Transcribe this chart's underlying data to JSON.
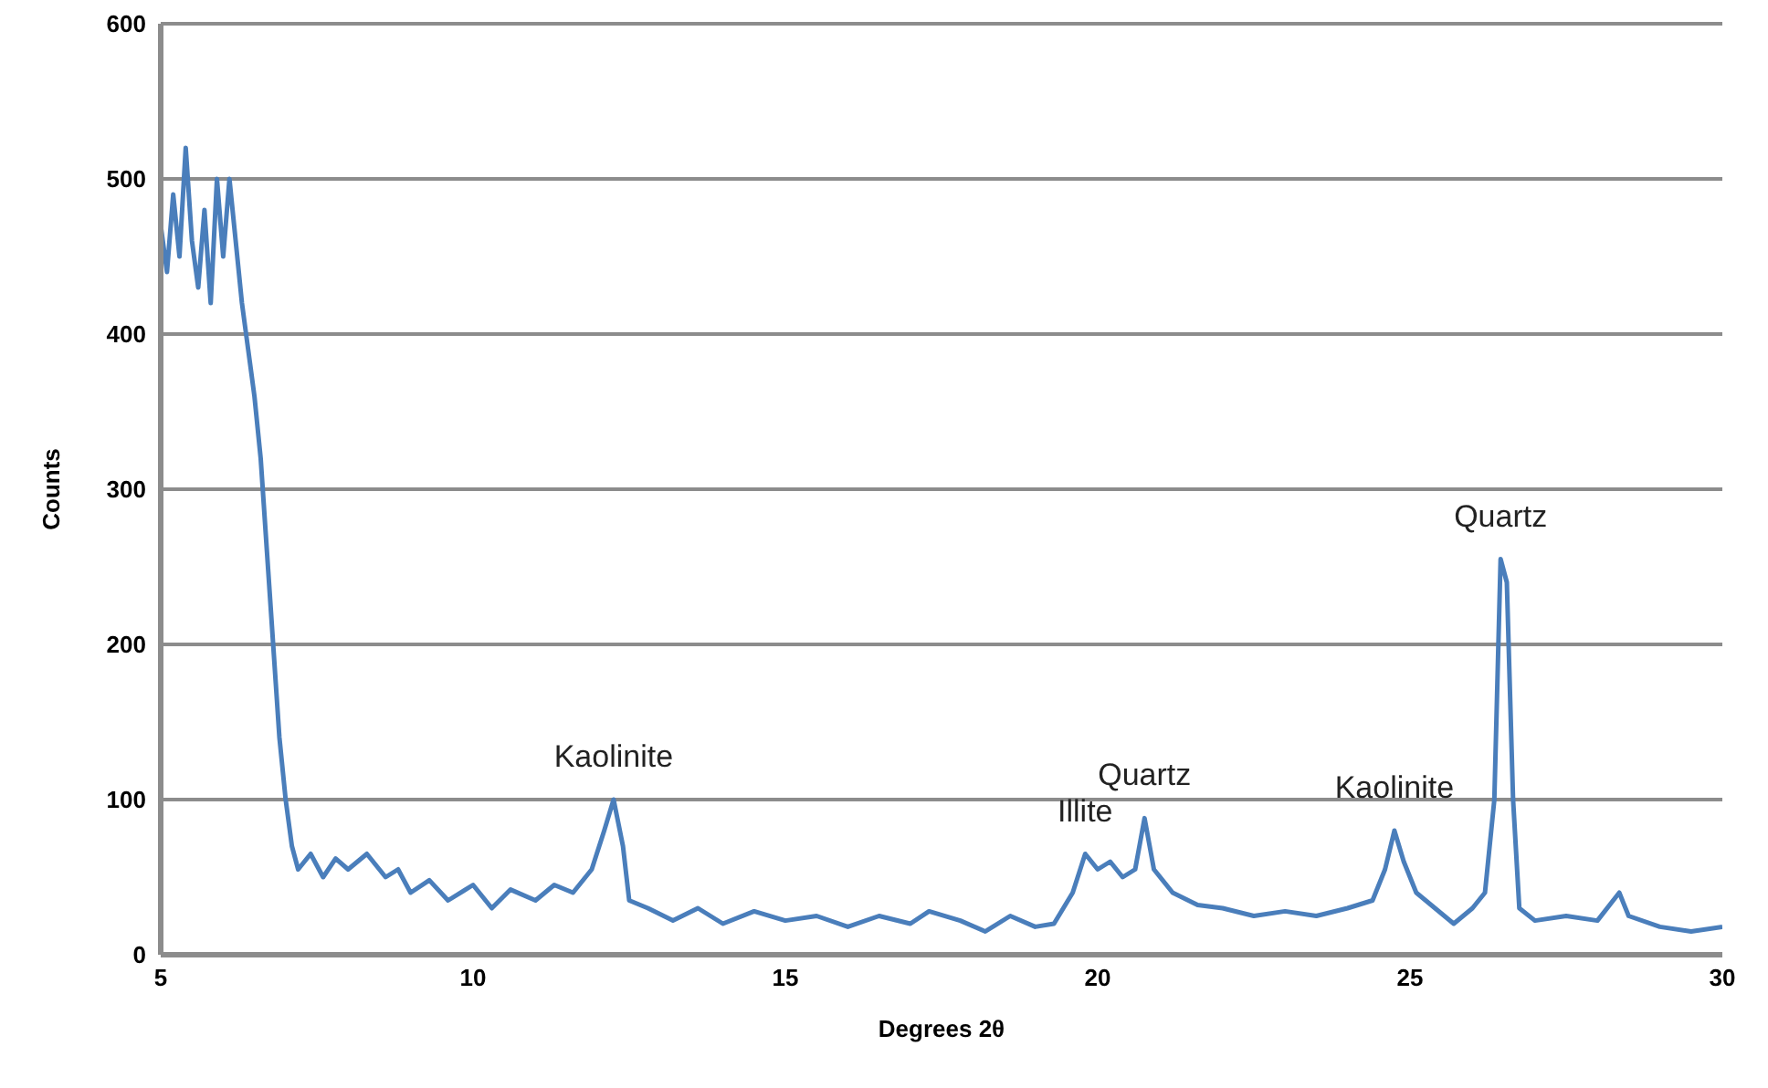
{
  "chart_data": {
    "type": "line",
    "xlabel": "Degrees 2θ",
    "ylabel": "Counts",
    "color": "#4a7ebb",
    "x": [
      5.0,
      5.1,
      5.2,
      5.3,
      5.4,
      5.5,
      5.6,
      5.7,
      5.8,
      5.9,
      6.0,
      6.1,
      6.2,
      6.3,
      6.4,
      6.5,
      6.6,
      6.7,
      6.8,
      6.9,
      7.0,
      7.1,
      7.2,
      7.4,
      7.6,
      7.8,
      8.0,
      8.3,
      8.6,
      8.8,
      9.0,
      9.3,
      9.6,
      10.0,
      10.3,
      10.6,
      11.0,
      11.3,
      11.6,
      11.9,
      12.1,
      12.25,
      12.4,
      12.5,
      12.8,
      13.2,
      13.6,
      14.0,
      14.5,
      15.0,
      15.5,
      16.0,
      16.5,
      17.0,
      17.3,
      17.8,
      18.2,
      18.6,
      19.0,
      19.3,
      19.6,
      19.8,
      20.0,
      20.2,
      20.4,
      20.6,
      20.75,
      20.9,
      21.2,
      21.6,
      22.0,
      22.5,
      23.0,
      23.5,
      24.0,
      24.4,
      24.6,
      24.75,
      24.9,
      25.1,
      25.4,
      25.7,
      26.0,
      26.2,
      26.35,
      26.45,
      26.55,
      26.65,
      26.75,
      27.0,
      27.5,
      28.0,
      28.35,
      28.5,
      29.0,
      29.5,
      30.0
    ],
    "values": [
      470,
      440,
      490,
      450,
      520,
      460,
      430,
      480,
      420,
      500,
      450,
      500,
      460,
      420,
      390,
      360,
      320,
      260,
      200,
      140,
      100,
      70,
      55,
      65,
      50,
      62,
      55,
      65,
      50,
      55,
      40,
      48,
      35,
      45,
      30,
      42,
      35,
      45,
      40,
      55,
      80,
      100,
      70,
      35,
      30,
      22,
      30,
      20,
      28,
      22,
      25,
      18,
      25,
      20,
      28,
      22,
      15,
      25,
      18,
      20,
      40,
      65,
      55,
      60,
      50,
      55,
      88,
      55,
      40,
      32,
      30,
      25,
      28,
      25,
      30,
      35,
      55,
      80,
      60,
      40,
      30,
      20,
      30,
      40,
      100,
      255,
      240,
      100,
      30,
      22,
      25,
      22,
      40,
      25,
      18,
      15,
      18
    ],
    "xlim": [
      5,
      30
    ],
    "xticks": [
      5,
      10,
      15,
      20,
      25,
      30
    ],
    "ylim": [
      0,
      600
    ],
    "yticks": [
      0,
      100,
      200,
      300,
      400,
      500,
      600
    ],
    "grid": "y",
    "annotations": [
      {
        "text": "Kaolinite",
        "x": 12.25,
        "y": 100
      },
      {
        "text": "Illite",
        "x": 19.8,
        "y": 65
      },
      {
        "text": "Quartz",
        "x": 20.75,
        "y": 88
      },
      {
        "text": "Kaolinite",
        "x": 24.75,
        "y": 80
      },
      {
        "text": "Quartz",
        "x": 26.45,
        "y": 255
      }
    ]
  }
}
